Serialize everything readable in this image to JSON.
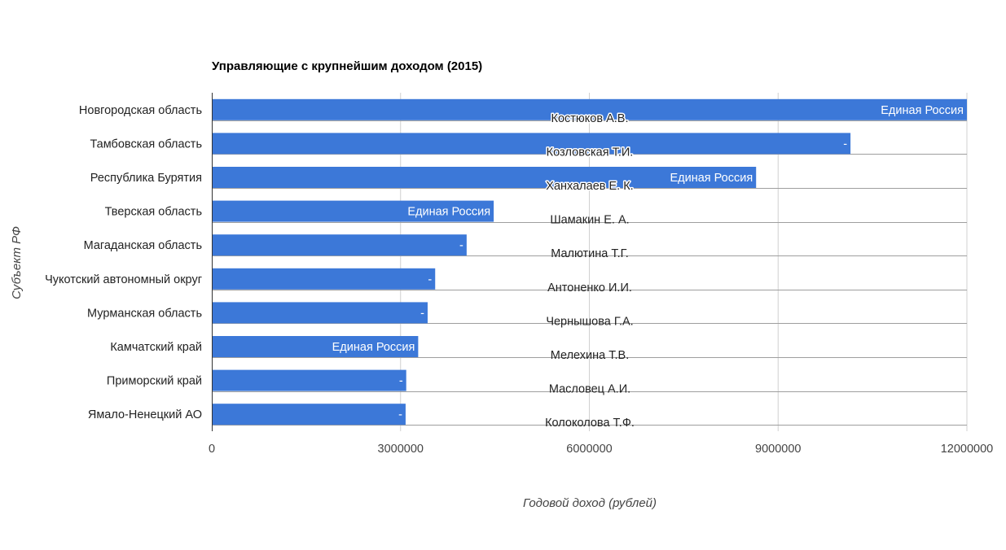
{
  "chart_data": {
    "type": "bar",
    "orientation": "horizontal",
    "title": "Управляющие с крупнейшим доходом (2015)",
    "xlabel": "Годовой доход (рублей)",
    "ylabel": "Субъект РФ",
    "xlim": [
      0,
      12000000
    ],
    "xticks": [
      0,
      3000000,
      6000000,
      9000000,
      12000000
    ],
    "xtick_labels": [
      "0",
      "3000000",
      "6000000",
      "9000000",
      "12000000"
    ],
    "grid": true,
    "bar_color": "#3c78d8",
    "categories": [
      "Новгородская область",
      "Тамбовская область",
      "Республика Бурятия",
      "Тверская область",
      "Магаданская область",
      "Чукотский автономный округ",
      "Мурманская область",
      "Камчатский край",
      "Приморский край",
      "Ямало-Ненецкий АО"
    ],
    "values": [
      12000000,
      10150000,
      8650000,
      4480000,
      4050000,
      3550000,
      3430000,
      3280000,
      3090000,
      3080000
    ],
    "party_labels": [
      "Единая Россия",
      "-",
      "Единая Россия",
      "Единая Россия",
      "-",
      "-",
      "-",
      "Единая Россия",
      "-",
      "-"
    ],
    "name_labels": [
      "Костюков А.В.",
      "Козловская Т.И.",
      "Ханхалаев Е. К.",
      "Шамакин Е. А.",
      "Малютина Т.Г.",
      "Антоненко И.И.",
      "Чернышова Г.А.",
      "Мелехина Т.В.",
      "Масловец А.И.",
      "Колоколова Т.Ф."
    ]
  }
}
